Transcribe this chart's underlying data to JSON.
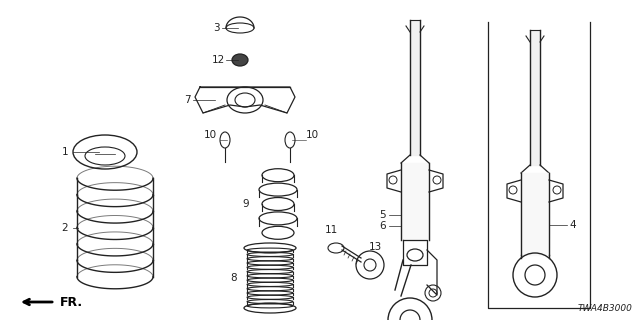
{
  "diagram_code": "TWA4B3000",
  "background_color": "#ffffff",
  "line_color": "#222222",
  "text_color": "#222222",
  "figsize": [
    6.4,
    3.2
  ],
  "dpi": 100
}
